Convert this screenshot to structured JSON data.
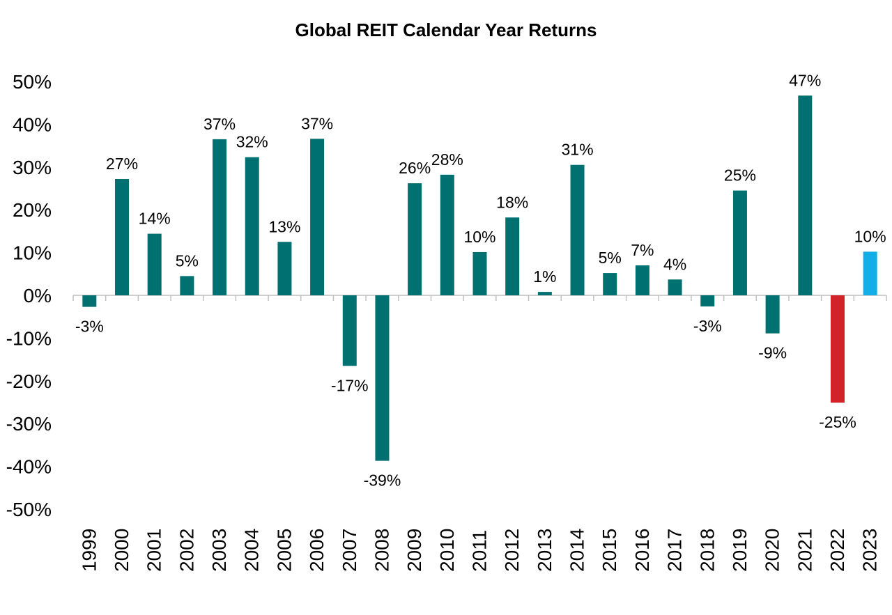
{
  "chart_data": {
    "type": "bar",
    "title": "Global REIT Calendar Year Returns",
    "xlabel": "",
    "ylabel": "",
    "categories": [
      "1999",
      "2000",
      "2001",
      "2002",
      "2003",
      "2004",
      "2005",
      "2006",
      "2007",
      "2008",
      "2009",
      "2010",
      "2011",
      "2012",
      "2013",
      "2014",
      "2015",
      "2016",
      "2017",
      "2018",
      "2019",
      "2020",
      "2021",
      "2022",
      "2023"
    ],
    "values": [
      -2.7,
      27.2,
      14.4,
      4.5,
      36.5,
      32.3,
      12.5,
      36.6,
      -16.5,
      -38.7,
      26.2,
      28.2,
      10.1,
      18.2,
      0.8,
      30.5,
      5.2,
      7.0,
      3.7,
      -2.6,
      24.5,
      -8.9,
      46.7,
      -25.1,
      10.2
    ],
    "data_labels": [
      "-3%",
      "27%",
      "14%",
      "5%",
      "37%",
      "32%",
      "13%",
      "37%",
      "-17%",
      "-39%",
      "26%",
      "28%",
      "10%",
      "18%",
      "1%",
      "31%",
      "5%",
      "7%",
      "4%",
      "-3%",
      "25%",
      "-9%",
      "47%",
      "-25%",
      "10%"
    ],
    "ylim": [
      -50,
      50
    ],
    "yticks": [
      -50,
      -40,
      -30,
      -20,
      -10,
      0,
      10,
      20,
      30,
      40,
      50
    ],
    "ytick_labels": [
      "-50%",
      "-40%",
      "-30%",
      "-20%",
      "-10%",
      "0%",
      "10%",
      "20%",
      "30%",
      "40%",
      "50%"
    ],
    "grid": false,
    "colors": {
      "default": "#007070",
      "2022": "#d2232a",
      "2023": "#12aee8",
      "axis": "#bfbfbf"
    }
  }
}
